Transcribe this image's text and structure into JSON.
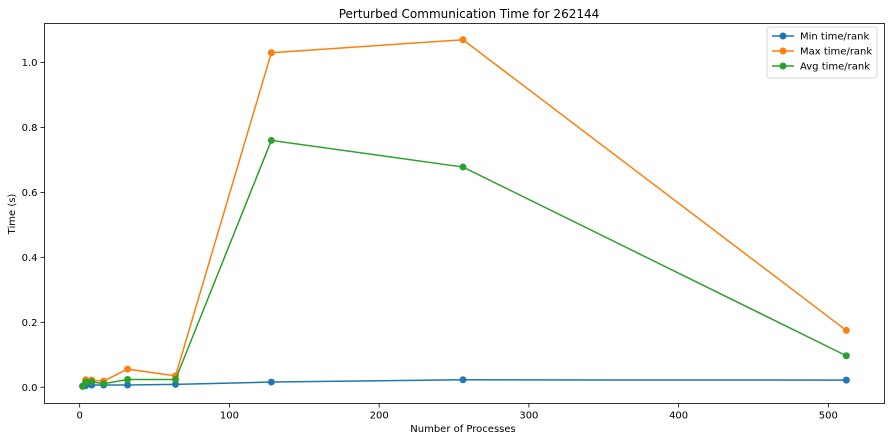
{
  "chart_data": {
    "type": "line",
    "title": "Perturbed Communication Time for 262144",
    "xlabel": "Number of Processes",
    "ylabel": "Time (s)",
    "xlim": [
      -23.5,
      537.5
    ],
    "ylim": [
      -0.05,
      1.12
    ],
    "xticks": [
      0,
      100,
      200,
      300,
      400,
      500
    ],
    "yticks": [
      0.0,
      0.2,
      0.4,
      0.6,
      0.8,
      1.0
    ],
    "xtick_labels": [
      "0",
      "100",
      "200",
      "300",
      "400",
      "500"
    ],
    "ytick_labels": [
      "0.0",
      "0.2",
      "0.4",
      "0.6",
      "0.8",
      "1.0"
    ],
    "grid": false,
    "legend_position": "top-right",
    "x": [
      2,
      4,
      8,
      16,
      32,
      64,
      128,
      256,
      512
    ],
    "series": [
      {
        "name": "Min time/rank",
        "color": "#1f77b4",
        "values": [
          0.003,
          0.005,
          0.007,
          0.007,
          0.007,
          0.009,
          0.016,
          0.023,
          0.022
        ]
      },
      {
        "name": "Max time/rank",
        "color": "#ff7f0e",
        "values": [
          0.004,
          0.023,
          0.022,
          0.019,
          0.056,
          0.035,
          1.03,
          1.07,
          0.175
        ]
      },
      {
        "name": "Avg time/rank",
        "color": "#2ca02c",
        "values": [
          0.003,
          0.016,
          0.017,
          0.011,
          0.024,
          0.024,
          0.76,
          0.678,
          0.097
        ]
      }
    ]
  }
}
